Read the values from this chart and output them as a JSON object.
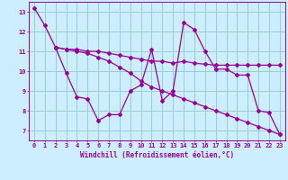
{
  "xlabel": "Windchill (Refroidissement éolien,°C)",
  "background_color": "#cceeff",
  "grid_color": "#99cccc",
  "line_color": "#990099",
  "xlim": [
    -0.5,
    23.5
  ],
  "ylim": [
    6.5,
    13.5
  ],
  "yticks": [
    7,
    8,
    9,
    10,
    11,
    12,
    13
  ],
  "xticks": [
    0,
    1,
    2,
    3,
    4,
    5,
    6,
    7,
    8,
    9,
    10,
    11,
    12,
    13,
    14,
    15,
    16,
    17,
    18,
    19,
    20,
    21,
    22,
    23
  ],
  "line1_x": [
    0,
    1,
    2,
    3,
    4,
    5,
    6,
    7,
    8,
    9,
    10,
    11,
    12,
    13,
    14,
    15,
    16,
    17,
    18,
    19,
    20,
    21,
    22,
    23
  ],
  "line1_y": [
    13.2,
    12.3,
    11.2,
    9.9,
    8.7,
    8.6,
    7.5,
    7.8,
    7.8,
    9.0,
    9.3,
    11.1,
    8.5,
    9.0,
    12.45,
    12.1,
    11.0,
    10.1,
    10.1,
    9.8,
    9.8,
    8.0,
    7.9,
    6.8
  ],
  "line2_x": [
    2,
    3,
    4,
    5,
    6,
    7,
    8,
    9,
    10,
    11,
    12,
    13,
    14,
    15,
    16,
    17,
    18,
    19,
    20,
    21,
    22,
    23
  ],
  "line2_y": [
    11.2,
    11.1,
    11.1,
    11.0,
    11.0,
    10.9,
    10.8,
    10.7,
    10.6,
    10.5,
    10.5,
    10.4,
    10.5,
    10.4,
    10.35,
    10.3,
    10.3,
    10.3,
    10.3,
    10.3,
    10.3,
    10.3
  ],
  "line3_x": [
    2,
    3,
    4,
    5,
    6,
    7,
    8,
    9,
    10,
    11,
    12,
    13,
    14,
    15,
    16,
    17,
    18,
    19,
    20,
    21,
    22,
    23
  ],
  "line3_y": [
    11.2,
    11.1,
    11.0,
    10.9,
    10.7,
    10.5,
    10.2,
    9.9,
    9.5,
    9.2,
    9.0,
    8.8,
    8.6,
    8.4,
    8.2,
    8.0,
    7.8,
    7.6,
    7.4,
    7.2,
    7.0,
    6.8
  ]
}
